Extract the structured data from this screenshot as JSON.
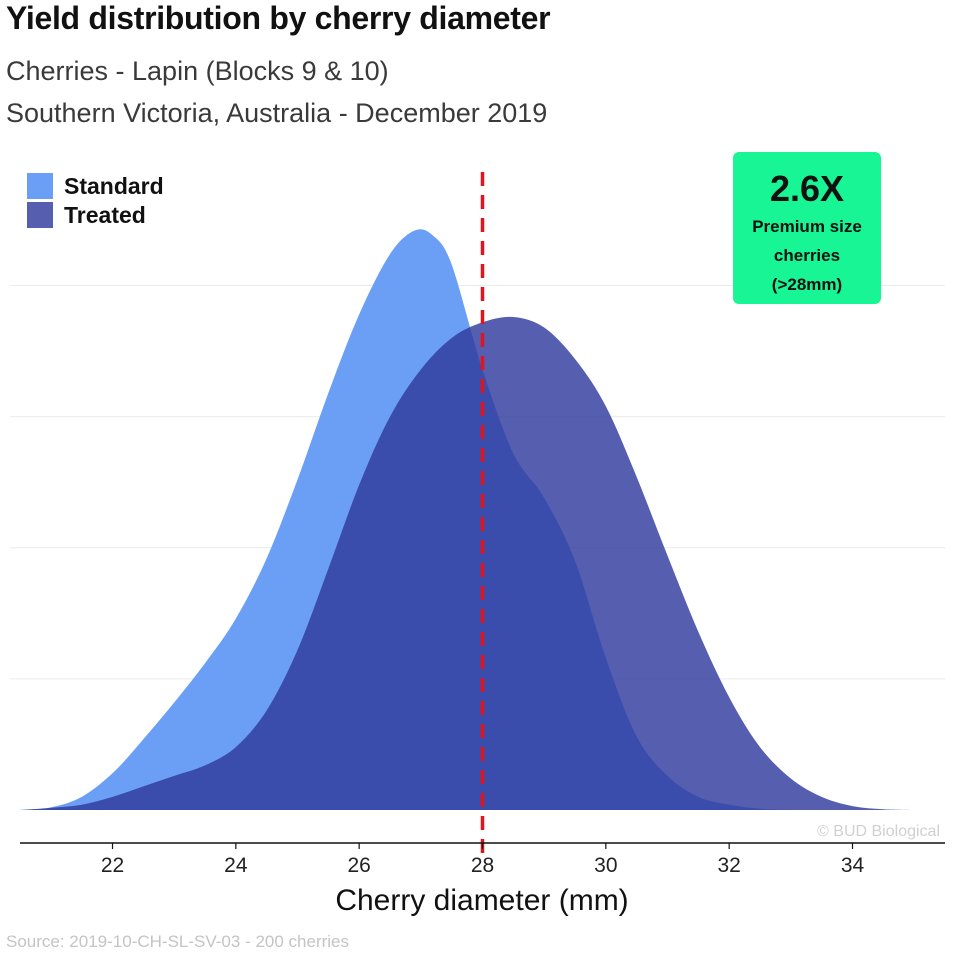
{
  "title": "Yield distribution by cherry diameter",
  "subtitle_line1": "Cherries - Lapin (Blocks 9 & 10)",
  "subtitle_line2": "Southern Victoria, Australia - December 2019",
  "callout": {
    "value": "2.6X",
    "line1": "Premium size",
    "line2": "cherries",
    "line3": "(>28mm)",
    "color": "#17f594"
  },
  "watermark": "© BUD Biological",
  "source": "Source: 2019-10-CH-SL-SV-03 - 200 cherries",
  "chart_data": {
    "type": "area",
    "title": "Yield distribution by cherry diameter",
    "xlabel": "Cherry diameter (mm)",
    "ylabel": "",
    "xlim": [
      20.5,
      35.5
    ],
    "ylim": [
      0,
      0.225
    ],
    "xticks": [
      22,
      24,
      26,
      28,
      30,
      32,
      34
    ],
    "grid": "horizontal",
    "legend_position": "top-left",
    "threshold": {
      "x": 28,
      "style": "dashed",
      "color": "#e0141e"
    },
    "series": [
      {
        "name": "Standard",
        "color": "#6b9ff5",
        "points": [
          [
            20.5,
            0.0
          ],
          [
            21.0,
            0.001
          ],
          [
            21.5,
            0.005
          ],
          [
            22.0,
            0.014
          ],
          [
            22.5,
            0.027
          ],
          [
            23.0,
            0.041
          ],
          [
            23.5,
            0.056
          ],
          [
            24.0,
            0.073
          ],
          [
            24.5,
            0.096
          ],
          [
            25.0,
            0.126
          ],
          [
            25.5,
            0.159
          ],
          [
            26.0,
            0.189
          ],
          [
            26.5,
            0.212
          ],
          [
            26.9,
            0.221
          ],
          [
            27.2,
            0.219
          ],
          [
            27.5,
            0.208
          ],
          [
            28.0,
            0.168
          ],
          [
            28.5,
            0.136
          ],
          [
            29.0,
            0.119
          ],
          [
            29.5,
            0.095
          ],
          [
            30.0,
            0.058
          ],
          [
            30.5,
            0.028
          ],
          [
            31.0,
            0.013
          ],
          [
            31.5,
            0.005
          ],
          [
            32.0,
            0.002
          ],
          [
            32.5,
            0.0005
          ],
          [
            33.0,
            0.0
          ]
        ]
      },
      {
        "name": "Treated",
        "color": "#2f3a9e",
        "points": [
          [
            20.5,
            0.0
          ],
          [
            21.0,
            0.0008
          ],
          [
            21.5,
            0.002
          ],
          [
            22.0,
            0.005
          ],
          [
            22.5,
            0.009
          ],
          [
            23.0,
            0.013
          ],
          [
            23.5,
            0.017
          ],
          [
            24.0,
            0.024
          ],
          [
            24.5,
            0.038
          ],
          [
            25.0,
            0.061
          ],
          [
            25.5,
            0.092
          ],
          [
            26.0,
            0.124
          ],
          [
            26.5,
            0.15
          ],
          [
            27.0,
            0.168
          ],
          [
            27.5,
            0.18
          ],
          [
            28.0,
            0.186
          ],
          [
            28.5,
            0.188
          ],
          [
            29.0,
            0.184
          ],
          [
            29.5,
            0.172
          ],
          [
            30.0,
            0.154
          ],
          [
            30.5,
            0.127
          ],
          [
            31.0,
            0.097
          ],
          [
            31.5,
            0.068
          ],
          [
            32.0,
            0.043
          ],
          [
            32.5,
            0.024
          ],
          [
            33.0,
            0.012
          ],
          [
            33.5,
            0.005
          ],
          [
            34.0,
            0.0015
          ],
          [
            34.5,
            0.0003
          ],
          [
            35.0,
            0.0
          ]
        ]
      }
    ]
  }
}
